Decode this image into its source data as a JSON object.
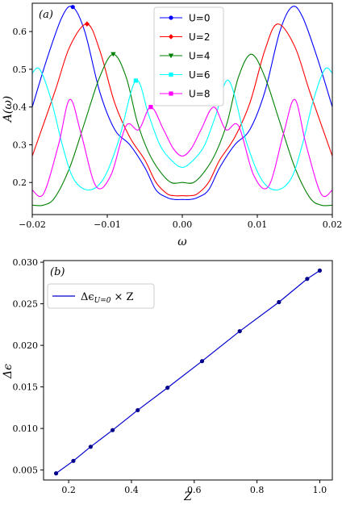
{
  "chart_data": [
    {
      "type": "line",
      "panel_label": "(a)",
      "xlabel": "ω",
      "ylabel": "A(ω)",
      "xlim": [
        -0.02,
        0.02
      ],
      "ylim": [
        0.115,
        0.675
      ],
      "xticks": [
        "−0.02",
        "−0.01",
        "0.00",
        "0.01",
        "0.02"
      ],
      "xtick_values": [
        -0.02,
        -0.01,
        0.0,
        0.01,
        0.02
      ],
      "yticks": [
        "0.2",
        "0.3",
        "0.4",
        "0.5",
        "0.6"
      ],
      "ytick_values": [
        0.2,
        0.3,
        0.4,
        0.5,
        0.6
      ],
      "legend_position": "top-center",
      "series": [
        {
          "name": "U=0",
          "color": "#0000ff",
          "marker": "circle",
          "x": [
            -0.02,
            -0.018,
            -0.016,
            -0.0146,
            -0.013,
            -0.011,
            -0.009,
            -0.007,
            -0.005,
            -0.0035,
            -0.002,
            -0.001,
            0.0,
            0.001,
            0.002,
            0.0035,
            0.005,
            0.007,
            0.009,
            0.011,
            0.013,
            0.0146,
            0.016,
            0.018,
            0.02
          ],
          "y": [
            0.4,
            0.53,
            0.64,
            0.665,
            0.6,
            0.44,
            0.34,
            0.3,
            0.24,
            0.18,
            0.16,
            0.155,
            0.155,
            0.155,
            0.16,
            0.18,
            0.24,
            0.3,
            0.34,
            0.44,
            0.6,
            0.665,
            0.64,
            0.53,
            0.4
          ],
          "marker_x": [
            -0.0146
          ],
          "marker_y": [
            0.665
          ]
        },
        {
          "name": "U=2",
          "color": "#ff0000",
          "marker": "diamond",
          "x": [
            -0.02,
            -0.017,
            -0.015,
            -0.0127,
            -0.011,
            -0.009,
            -0.007,
            -0.005,
            -0.0035,
            -0.002,
            -0.001,
            0.0,
            0.001,
            0.002,
            0.0035,
            0.005,
            0.007,
            0.009,
            0.011,
            0.0127,
            0.015,
            0.017,
            0.02
          ],
          "y": [
            0.27,
            0.44,
            0.56,
            0.62,
            0.55,
            0.41,
            0.32,
            0.26,
            0.2,
            0.17,
            0.165,
            0.165,
            0.165,
            0.17,
            0.2,
            0.26,
            0.32,
            0.41,
            0.55,
            0.62,
            0.56,
            0.44,
            0.27
          ],
          "marker_x": [
            -0.0127
          ],
          "marker_y": [
            0.62
          ]
        },
        {
          "name": "U=4",
          "color": "#008000",
          "marker": "triangle-down",
          "x": [
            -0.02,
            -0.0185,
            -0.017,
            -0.015,
            -0.013,
            -0.011,
            -0.0092,
            -0.0075,
            -0.006,
            -0.0045,
            -0.003,
            -0.0015,
            0.0,
            0.0015,
            0.003,
            0.0045,
            0.006,
            0.0075,
            0.0092,
            0.011,
            0.013,
            0.015,
            0.017,
            0.0185,
            0.02
          ],
          "y": [
            0.14,
            0.14,
            0.16,
            0.24,
            0.36,
            0.48,
            0.54,
            0.48,
            0.36,
            0.28,
            0.23,
            0.2,
            0.2,
            0.2,
            0.23,
            0.28,
            0.36,
            0.48,
            0.54,
            0.48,
            0.36,
            0.24,
            0.16,
            0.14,
            0.14
          ],
          "marker_x": [
            -0.0092
          ],
          "marker_y": [
            0.54
          ]
        },
        {
          "name": "U=6",
          "color": "#00ffff",
          "marker": "square",
          "x": [
            -0.02,
            -0.019,
            -0.0175,
            -0.016,
            -0.0145,
            -0.0125,
            -0.0105,
            -0.0085,
            -0.0062,
            -0.0045,
            -0.003,
            -0.0015,
            0.0,
            0.0015,
            0.003,
            0.0045,
            0.0062,
            0.0085,
            0.0105,
            0.0125,
            0.0145,
            0.016,
            0.0175,
            0.019,
            0.02
          ],
          "y": [
            0.49,
            0.5,
            0.42,
            0.3,
            0.21,
            0.18,
            0.21,
            0.31,
            0.47,
            0.38,
            0.3,
            0.26,
            0.24,
            0.26,
            0.3,
            0.38,
            0.47,
            0.31,
            0.21,
            0.18,
            0.21,
            0.3,
            0.42,
            0.5,
            0.49
          ],
          "marker_x": [
            -0.0062
          ],
          "marker_y": [
            0.47
          ]
        },
        {
          "name": "U=8",
          "color": "#ff00ff",
          "marker": "square",
          "x": [
            -0.02,
            -0.0185,
            -0.0165,
            -0.015,
            -0.0135,
            -0.0115,
            -0.0095,
            -0.0075,
            -0.0058,
            -0.0042,
            -0.0025,
            -0.0012,
            0.0,
            0.0012,
            0.0025,
            0.0042,
            0.0058,
            0.0075,
            0.0095,
            0.0115,
            0.0135,
            0.015,
            0.0165,
            0.0185,
            0.02
          ],
          "y": [
            0.18,
            0.17,
            0.3,
            0.42,
            0.33,
            0.19,
            0.22,
            0.35,
            0.34,
            0.4,
            0.34,
            0.29,
            0.27,
            0.29,
            0.34,
            0.4,
            0.34,
            0.35,
            0.22,
            0.19,
            0.33,
            0.42,
            0.3,
            0.17,
            0.18
          ],
          "marker_x": [
            -0.0042
          ],
          "marker_y": [
            0.4
          ]
        }
      ]
    },
    {
      "type": "line",
      "panel_label": "(b)",
      "xlabel": "Z",
      "ylabel": "Δϵ",
      "xlim": [
        0.12,
        1.04
      ],
      "ylim": [
        0.0038,
        0.0302
      ],
      "xticks": [
        "0.2",
        "0.4",
        "0.6",
        "0.8",
        "1.0"
      ],
      "xtick_values": [
        0.2,
        0.4,
        0.6,
        0.8,
        1.0
      ],
      "yticks": [
        "0.005",
        "0.010",
        "0.015",
        "0.020",
        "0.025",
        "0.030"
      ],
      "ytick_values": [
        0.005,
        0.01,
        0.015,
        0.02,
        0.025,
        0.03
      ],
      "legend_position": "top-left",
      "legend_text": "Δϵ",
      "legend_sub": "U=0",
      "legend_suffix": "× Z",
      "series": [
        {
          "name": "Δϵ U=0 × Z",
          "color": "#0000cc",
          "marker": "circle",
          "x": [
            0.16,
            0.215,
            0.27,
            0.34,
            0.42,
            0.515,
            0.625,
            0.745,
            0.87,
            0.96,
            1.0
          ],
          "y": [
            0.0046,
            0.0061,
            0.0078,
            0.0098,
            0.0122,
            0.0149,
            0.0181,
            0.0217,
            0.0252,
            0.028,
            0.029
          ]
        }
      ]
    }
  ]
}
